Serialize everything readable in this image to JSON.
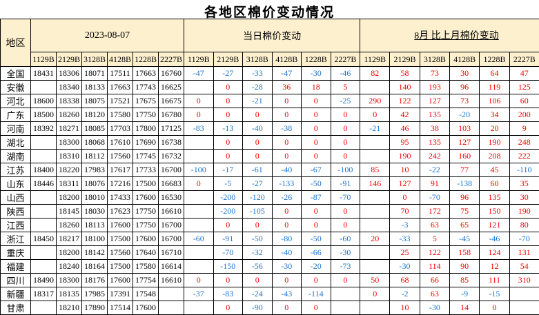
{
  "title": "各地区棉价变动情况",
  "colors": {
    "header_bg": "#FCF0CF",
    "positive": "#FE0000",
    "negative": "#1B76D2",
    "border": "#000000",
    "text": "#000000"
  },
  "table": {
    "region_label": "地区",
    "sections": [
      {
        "label": "2023-08-07",
        "columns": [
          "1129B",
          "2129B",
          "3128B",
          "4128B",
          "1228B",
          "2227B"
        ]
      },
      {
        "label": "当日棉价变动",
        "columns": [
          "1129B",
          "2129B",
          "3128B",
          "4128B",
          "1228B",
          "2227B"
        ]
      },
      {
        "label": "8月 比上月棉价变动",
        "columns": [
          "1129B",
          "2129B",
          "3128B",
          "4128B",
          "1228B",
          "2227B"
        ]
      }
    ],
    "rows": [
      {
        "region": "全国",
        "price": [
          18431,
          18306,
          18071,
          17511,
          17663,
          16760
        ],
        "daily_change": [
          -47,
          -27,
          -33,
          -47,
          -30,
          -46
        ],
        "monthly_change": [
          82,
          58,
          73,
          30,
          64,
          47
        ]
      },
      {
        "region": "安徽",
        "price": [
          null,
          18340,
          18133,
          17663,
          17743,
          16625
        ],
        "daily_change": [
          null,
          0,
          -28,
          36,
          18,
          5
        ],
        "monthly_change": [
          null,
          140,
          193,
          96,
          119,
          125
        ]
      },
      {
        "region": "河北",
        "price": [
          18600,
          18338,
          18075,
          17521,
          17675,
          16675
        ],
        "daily_change": [
          0,
          0,
          -21,
          0,
          0,
          -25
        ],
        "monthly_change": [
          290,
          122,
          127,
          73,
          106,
          60
        ]
      },
      {
        "region": "广东",
        "price": [
          18500,
          18260,
          18120,
          17580,
          17750,
          16780
        ],
        "daily_change": [
          0,
          0,
          0,
          0,
          0,
          0
        ],
        "monthly_change": [
          0,
          42,
          135,
          -20,
          34,
          200
        ]
      },
      {
        "region": "河南",
        "price": [
          18392,
          18271,
          18085,
          17703,
          17800,
          17125
        ],
        "daily_change": [
          -83,
          -13,
          -40,
          -38,
          0,
          0
        ],
        "monthly_change": [
          -21,
          46,
          38,
          103,
          20,
          9
        ]
      },
      {
        "region": "湖北",
        "price": [
          null,
          18300,
          18068,
          17610,
          17690,
          16738
        ],
        "daily_change": [
          null,
          0,
          0,
          0,
          0,
          0
        ],
        "monthly_change": [
          null,
          95,
          135,
          127,
          190,
          248
        ]
      },
      {
        "region": "湖南",
        "price": [
          null,
          18310,
          18112,
          17560,
          17745,
          16732
        ],
        "daily_change": [
          null,
          0,
          0,
          0,
          0,
          0
        ],
        "monthly_change": [
          null,
          190,
          242,
          160,
          208,
          222
        ]
      },
      {
        "region": "江苏",
        "price": [
          18400,
          18220,
          17983,
          17617,
          17733,
          16700
        ],
        "daily_change": [
          -100,
          -17,
          -61,
          -40,
          -67,
          -100
        ],
        "monthly_change": [
          85,
          10,
          -22,
          77,
          45,
          -110
        ]
      },
      {
        "region": "山东",
        "price": [
          18446,
          18311,
          18076,
          17216,
          17500,
          16683
        ],
        "daily_change": [
          0,
          -5,
          -27,
          -133,
          -50,
          -91
        ],
        "monthly_change": [
          146,
          127,
          91,
          -138,
          60,
          35
        ]
      },
      {
        "region": "山西",
        "price": [
          null,
          18200,
          18010,
          17433,
          17600,
          16530
        ],
        "daily_change": [
          null,
          -200,
          -120,
          -26,
          -87,
          -70
        ],
        "monthly_change": [
          null,
          0,
          -70,
          96,
          135,
          30
        ]
      },
      {
        "region": "陕西",
        "price": [
          null,
          18145,
          18030,
          17623,
          17750,
          16610
        ],
        "daily_change": [
          null,
          -200,
          -105,
          0,
          0,
          0
        ],
        "monthly_change": [
          null,
          70,
          172,
          75,
          150,
          190
        ]
      },
      {
        "region": "江西",
        "price": [
          null,
          18260,
          18113,
          17600,
          17750,
          16700
        ],
        "daily_change": [
          null,
          0,
          0,
          0,
          0,
          0
        ],
        "monthly_change": [
          null,
          -3,
          63,
          65,
          121,
          80
        ]
      },
      {
        "region": "浙江",
        "price": [
          18450,
          18217,
          18100,
          17500,
          17600,
          16700
        ],
        "daily_change": [
          -60,
          -91,
          -50,
          -80,
          -50,
          -60
        ],
        "monthly_change": [
          20,
          -33,
          5,
          -45,
          -46,
          -70
        ]
      },
      {
        "region": "重庆",
        "price": [
          null,
          18200,
          18142,
          17560,
          17640,
          16710
        ],
        "daily_change": [
          null,
          -70,
          -32,
          -40,
          -66,
          -30
        ],
        "monthly_change": [
          null,
          25,
          122,
          158,
          124,
          131
        ]
      },
      {
        "region": "福建",
        "price": [
          null,
          18240,
          18164,
          17500,
          17580,
          16614
        ],
        "daily_change": [
          null,
          -150,
          -56,
          -30,
          -20,
          -73
        ],
        "monthly_change": [
          null,
          -30,
          114,
          90,
          12,
          54
        ]
      },
      {
        "region": "四川",
        "price": [
          18490,
          18300,
          18176,
          17600,
          17754,
          16610
        ],
        "daily_change": [
          0,
          0,
          0,
          0,
          0,
          0
        ],
        "monthly_change": [
          50,
          68,
          66,
          85,
          111,
          310
        ]
      },
      {
        "region": "新疆",
        "price": [
          18317,
          18135,
          17985,
          17391,
          17548,
          null
        ],
        "daily_change": [
          -37,
          -83,
          -24,
          -43,
          -114,
          null
        ],
        "monthly_change": [
          0,
          -2,
          63,
          -9,
          -15,
          null
        ]
      },
      {
        "region": "甘肃",
        "price": [
          null,
          18210,
          17890,
          17514,
          17600,
          null
        ],
        "daily_change": [
          null,
          0,
          -90,
          0,
          0,
          null
        ],
        "monthly_change": [
          null,
          10,
          -30,
          14,
          0,
          null
        ]
      }
    ]
  }
}
